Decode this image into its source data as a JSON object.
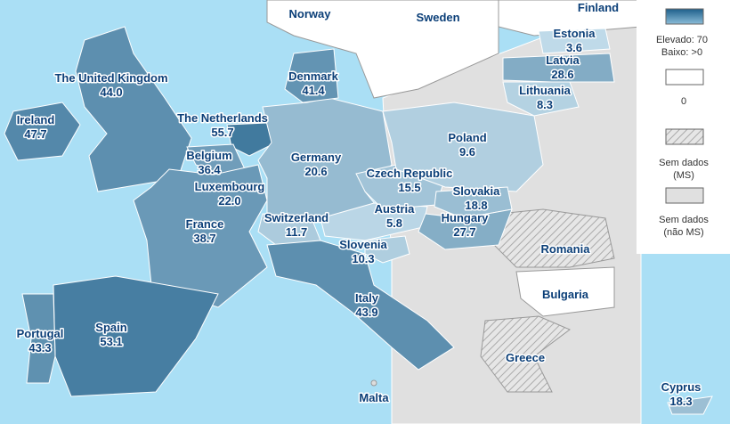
{
  "chart_data": {
    "type": "map",
    "regions": [
      "The United Kingdom",
      "Ireland",
      "The Netherlands",
      "Belgium",
      "Luxembourg",
      "France",
      "Germany",
      "Denmark",
      "Switzerland",
      "Austria",
      "Czech Republic",
      "Poland",
      "Slovakia",
      "Hungary",
      "Slovenia",
      "Italy",
      "Spain",
      "Portugal",
      "Estonia",
      "Latvia",
      "Lithuania",
      "Cyprus"
    ],
    "values": [
      44.0,
      47.7,
      55.7,
      36.4,
      22.0,
      38.7,
      20.6,
      41.4,
      11.7,
      5.8,
      15.5,
      9.6,
      18.8,
      27.7,
      10.3,
      43.9,
      53.1,
      43.3,
      3.6,
      28.6,
      8.3,
      18.3
    ],
    "value_labels": [
      "44.0",
      "47.7",
      "55.7",
      "36.4",
      "22.0",
      "38.7",
      "20.6",
      "41.4",
      "11.7",
      "5.8",
      "15.5",
      "9.6",
      "18.8",
      "27.7",
      "10.3",
      "43.9",
      "53.1",
      "43.3",
      "3.6",
      "28.6",
      "8.3",
      "18.3"
    ],
    "other_labels": [
      "Norway",
      "Sweden",
      "Finland",
      "Romania",
      "Bulgaria",
      "Greece",
      "Malta"
    ],
    "legend": {
      "max": 70,
      "max_label": "Elevado: 70",
      "min_label": "Baixo: >0",
      "zero": 0,
      "no_data_ms": [
        "Sem dados",
        "(MS)"
      ],
      "no_data_non_ms": [
        "Sem dados",
        "(não MS)"
      ]
    }
  }
}
